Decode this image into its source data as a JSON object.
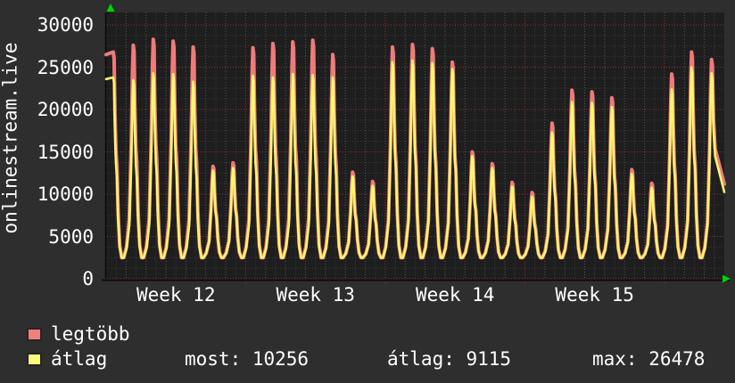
{
  "site_label": "onlinestream.live",
  "chart_data": {
    "type": "line",
    "title": "",
    "x_axis": {
      "week_labels": [
        "Week 12",
        "Week 13",
        "Week 14",
        "Week 15"
      ],
      "days_per_week": 7,
      "total_days": 31
    },
    "y_axis": {
      "min": 0,
      "max": 30000,
      "tick_step": 5000,
      "minor_step": 1250,
      "tick_labels": [
        "0",
        "5000",
        "10000",
        "15000",
        "20000",
        "25000",
        "30000"
      ]
    },
    "grid": {
      "on": true,
      "major_color": "#8d3636",
      "minor_color": "#3c3c3c",
      "day_line_color": "#565656",
      "canvas_color": "#1e1e1e",
      "axis_color": "#0a0a0a",
      "arrow_color": "#00d400"
    },
    "valley_value": 2500,
    "series": [
      {
        "name": "legtöbb",
        "color": "#ef7b7b",
        "legend_color": "#f08080",
        "start_value": 26500,
        "end_value": 11200,
        "daily_peaks": [
          26800,
          27600,
          28300,
          28100,
          27400,
          13300,
          13700,
          27300,
          27800,
          28000,
          28200,
          26500,
          12600,
          11500,
          27400,
          27700,
          27200,
          25600,
          15000,
          13600,
          11400,
          10200,
          18400,
          22300,
          22100,
          21400,
          12900,
          11300,
          24200,
          26800,
          25900
        ]
      },
      {
        "name": "átlag",
        "color": "#f7f76e",
        "legend_color": "#fbfb82",
        "start_value": 23600,
        "end_value": 10256,
        "daily_peaks": [
          23800,
          23500,
          24300,
          24200,
          23300,
          12800,
          13100,
          24000,
          23800,
          24200,
          24100,
          23800,
          12100,
          11000,
          25600,
          25800,
          25500,
          24800,
          14500,
          13100,
          10900,
          9700,
          17300,
          20900,
          20800,
          20300,
          12400,
          10800,
          22400,
          25000,
          24300
        ]
      }
    ]
  },
  "legend": {
    "items": [
      {
        "label": "legtöbb"
      },
      {
        "label": "átlag"
      }
    ],
    "stats": {
      "most": "most: 10256",
      "atlag": "átlag: 9115",
      "max": "max: 26478"
    }
  }
}
